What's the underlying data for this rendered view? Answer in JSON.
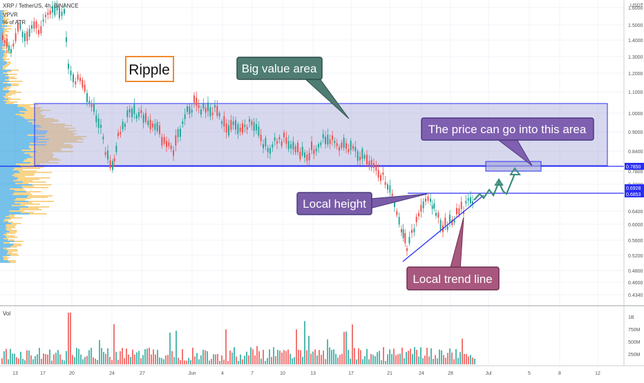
{
  "header": {
    "symbol": "XRP / TetherUS, 4h, BINANCE",
    "indicator": "VPVR",
    "indicator_sub": "% of ATR"
  },
  "price_axis": {
    "currency": "USDT",
    "ticks": [
      "1.6000",
      "1.5000",
      "1.4000",
      "1.3000",
      "1.2000",
      "1.1000",
      "1.0000",
      "0.9000",
      "0.8400",
      "0.7800",
      "0.7200",
      "0.6400",
      "0.6000",
      "0.5600",
      "0.5200",
      "0.4800",
      "0.4600",
      "0.4340"
    ],
    "price_tags": [
      {
        "label": "0.7850",
        "color": "#2a2ef5"
      },
      {
        "label": "0.6928",
        "color": "#2a2ef5"
      },
      {
        "label": "0.6853",
        "color": "#2a2ef5"
      }
    ]
  },
  "volume_axis": {
    "title": "Vol",
    "ticks": [
      "1B",
      "750M",
      "500M",
      "250M"
    ]
  },
  "time_axis": {
    "ticks": [
      "13",
      "17",
      "20",
      "24",
      "27",
      "Jun",
      "4",
      "7",
      "10",
      "13",
      "17",
      "21",
      "24",
      "28",
      "Jul",
      "5",
      "8",
      "12"
    ]
  },
  "annotations": {
    "title": "Ripple",
    "big_value_area": "Big value area",
    "price_area": "The price can go into this area",
    "local_height": "Local height",
    "local_trend_line": "Local trend line"
  },
  "colors": {
    "value_area_border": "#2a2ef5",
    "value_area_fill": "#a7a9d9",
    "up_candle": "#26a69a",
    "down_candle": "#ef5350",
    "vpvr_up": "#36a3e0",
    "vpvr_down": "#f5b73b",
    "big_value_area_box": "#4f7d73",
    "price_area_box": "#7f5fb0",
    "local_height_box": "#7a5da8",
    "local_trend_box": "#a8587e",
    "ripple_border": "#f08a2c"
  }
}
